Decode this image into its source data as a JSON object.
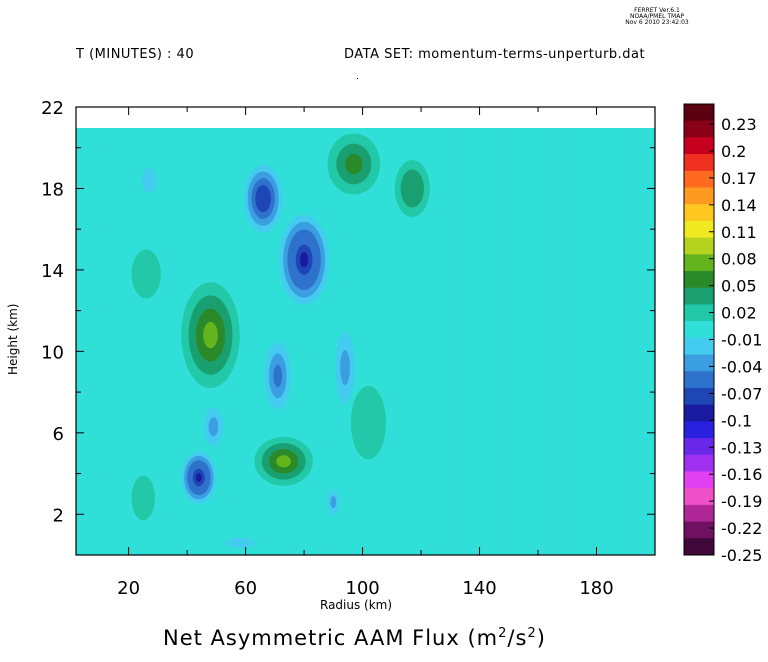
{
  "header": {
    "credit_line1": "FERRET Ver.6.1",
    "credit_line2": "NOAA/PMEL TMAP",
    "credit_line3": "Nov 6 2010 23:42:03",
    "left_label": "T (MINUTES) : 40",
    "right_label": "DATA SET: momentum-terms-unperturb.dat"
  },
  "chart_data": {
    "type": "heatmap",
    "title": "Net Asymmetric AAM Flux (m",
    "title_units_exp": "2",
    "title_units_mid": "/s",
    "title_units_exp2": "2",
    "title_units_close": ")",
    "xlabel": "Radius (km)",
    "ylabel": "Height (km)",
    "xlim": [
      2,
      200
    ],
    "ylim": [
      0,
      22
    ],
    "data_top": 21,
    "x_ticks": [
      20,
      60,
      100,
      140,
      180
    ],
    "x_tick_labels": [
      "20",
      "60",
      "100",
      "140",
      "180"
    ],
    "y_ticks": [
      2,
      6,
      10,
      14,
      18,
      22
    ],
    "y_tick_labels": [
      "2",
      "6",
      "10",
      "14",
      "18",
      "22"
    ],
    "colorbar_labels": [
      "0.23",
      "0.2",
      "0.17",
      "0.14",
      "0.11",
      "0.08",
      "0.05",
      "0.02",
      "-0.01",
      "-0.04",
      "-0.07",
      "-0.1",
      "-0.13",
      "-0.16",
      "-0.19",
      "-0.22",
      "-0.25"
    ],
    "colorbar_colors": [
      "#5a0010",
      "#8a0018",
      "#c80020",
      "#f03020",
      "#ff6a20",
      "#ff9a20",
      "#ffc820",
      "#f0e820",
      "#b4d21e",
      "#64b41e",
      "#2a8a2a",
      "#1aa070",
      "#22c8a8",
      "#30e0d8",
      "#44ccf0",
      "#3a9ee0",
      "#2e72cc",
      "#1e46b4",
      "#1a1aa0",
      "#2a20e0",
      "#6a28e8",
      "#a030f0",
      "#e040f0",
      "#f050c8",
      "#b02898",
      "#701060",
      "#400838"
    ],
    "background_value": 0.0,
    "features": [
      {
        "x": 27,
        "y": 18.4,
        "rx": 5,
        "ry": 1.2,
        "value": -0.03
      },
      {
        "x": 66,
        "y": 17.5,
        "rx": 8,
        "ry": 2.0,
        "value": -0.09
      },
      {
        "x": 80,
        "y": 14.5,
        "rx": 10,
        "ry": 2.6,
        "value": -0.1
      },
      {
        "x": 48,
        "y": 10.8,
        "rx": 10,
        "ry": 2.6,
        "value": 0.06
      },
      {
        "x": 97,
        "y": 19.2,
        "rx": 9,
        "ry": 1.5,
        "value": 0.05
      },
      {
        "x": 117,
        "y": 18.0,
        "rx": 6,
        "ry": 1.4,
        "value": 0.04
      },
      {
        "x": 71,
        "y": 8.8,
        "rx": 6,
        "ry": 2.2,
        "value": -0.06
      },
      {
        "x": 94,
        "y": 9.2,
        "rx": 5,
        "ry": 2.6,
        "value": -0.05
      },
      {
        "x": 44,
        "y": 3.8,
        "rx": 7,
        "ry": 1.5,
        "value": -0.1
      },
      {
        "x": 49,
        "y": 6.3,
        "rx": 5,
        "ry": 1.4,
        "value": -0.05
      },
      {
        "x": 73,
        "y": 4.6,
        "rx": 10,
        "ry": 1.2,
        "value": 0.06
      },
      {
        "x": 90,
        "y": 2.6,
        "rx": 3,
        "ry": 0.9,
        "value": -0.04
      },
      {
        "x": 25,
        "y": 2.8,
        "rx": 4,
        "ry": 1.1,
        "value": 0.02
      },
      {
        "x": 102,
        "y": 6.5,
        "rx": 6,
        "ry": 1.8,
        "value": 0.02
      },
      {
        "x": 26,
        "y": 13.8,
        "rx": 5,
        "ry": 1.2,
        "value": 0.02
      },
      {
        "x": 58,
        "y": 0.6,
        "rx": 10,
        "ry": 0.5,
        "value": -0.03
      }
    ]
  }
}
